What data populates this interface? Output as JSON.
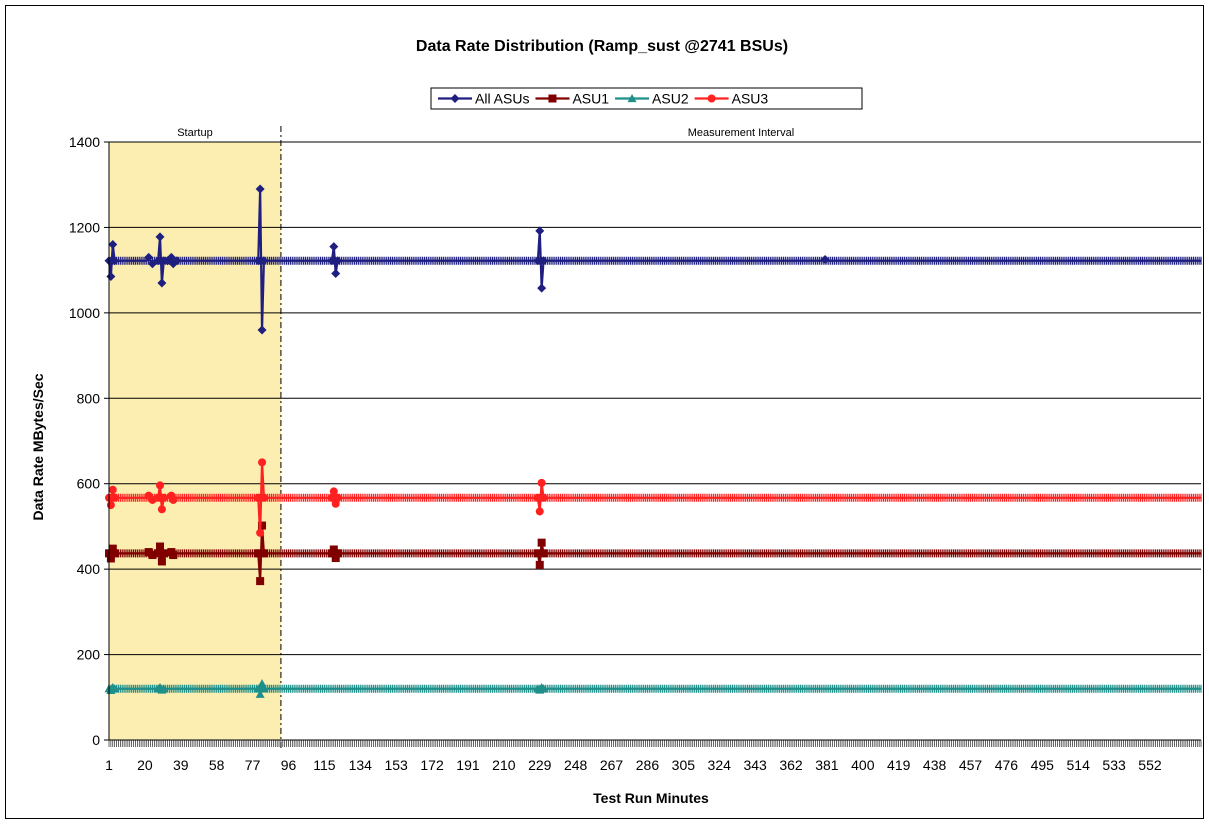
{
  "chart_data": {
    "type": "line",
    "title": "Data Rate Distribution (Ramp_sust @2741 BSUs)",
    "xlabel": "Test Run Minutes",
    "ylabel": "Data Rate MBytes/Sec",
    "ylim": [
      0,
      1400
    ],
    "yticks": [
      "0",
      "200",
      "400",
      "600",
      "800",
      "1000",
      "1200",
      "1400"
    ],
    "xlim": [
      1,
      579
    ],
    "xtick_labels": [
      "1",
      "20",
      "39",
      "58",
      "77",
      "96",
      "115",
      "134",
      "153",
      "172",
      "191",
      "210",
      "229",
      "248",
      "267",
      "286",
      "305",
      "324",
      "343",
      "362",
      "381",
      "400",
      "419",
      "438",
      "457",
      "476",
      "495",
      "514",
      "533",
      "552"
    ],
    "xtick_values": [
      1,
      20,
      39,
      58,
      77,
      96,
      115,
      134,
      153,
      172,
      191,
      210,
      229,
      248,
      267,
      286,
      305,
      324,
      343,
      362,
      381,
      400,
      419,
      438,
      457,
      476,
      495,
      514,
      533,
      552
    ],
    "grid": true,
    "legend_position": "top",
    "regions": [
      {
        "label": "Startup",
        "x_start": 1,
        "x_end": 92,
        "color": "#FCEDB0"
      },
      {
        "label": "Measurement Interval",
        "x_start": 92,
        "x_end": 579
      }
    ],
    "series": [
      {
        "name": "All ASUs",
        "color": "#1F1F80",
        "marker": "diamond",
        "baseline": 1122,
        "spikes": [
          [
            1,
            1122
          ],
          [
            2,
            1085
          ],
          [
            3,
            1160
          ],
          [
            4,
            1122
          ],
          [
            22,
            1130
          ],
          [
            24,
            1115
          ],
          [
            27,
            1122
          ],
          [
            28,
            1178
          ],
          [
            29,
            1070
          ],
          [
            30,
            1122
          ],
          [
            32,
            1122
          ],
          [
            34,
            1130
          ],
          [
            35,
            1115
          ],
          [
            37,
            1122
          ],
          [
            80,
            1122
          ],
          [
            81,
            1290
          ],
          [
            82,
            960
          ],
          [
            83,
            1122
          ],
          [
            119,
            1122
          ],
          [
            120,
            1155
          ],
          [
            121,
            1092
          ],
          [
            122,
            1122
          ],
          [
            228,
            1122
          ],
          [
            229,
            1192
          ],
          [
            230,
            1058
          ],
          [
            231,
            1122
          ],
          [
            380,
            1125
          ]
        ]
      },
      {
        "name": "ASU1",
        "color": "#800000",
        "marker": "square",
        "baseline": 437,
        "spikes": [
          [
            1,
            437
          ],
          [
            2,
            425
          ],
          [
            3,
            448
          ],
          [
            4,
            437
          ],
          [
            22,
            440
          ],
          [
            24,
            433
          ],
          [
            27,
            437
          ],
          [
            28,
            453
          ],
          [
            29,
            418
          ],
          [
            30,
            437
          ],
          [
            34,
            440
          ],
          [
            35,
            433
          ],
          [
            80,
            437
          ],
          [
            81,
            372
          ],
          [
            82,
            502
          ],
          [
            83,
            437
          ],
          [
            119,
            437
          ],
          [
            120,
            446
          ],
          [
            121,
            426
          ],
          [
            122,
            437
          ],
          [
            228,
            437
          ],
          [
            229,
            410
          ],
          [
            230,
            462
          ],
          [
            231,
            437
          ]
        ]
      },
      {
        "name": "ASU2",
        "color": "#1F8F8A",
        "marker": "triangle",
        "baseline": 120,
        "spikes": [
          [
            1,
            120
          ],
          [
            2,
            116
          ],
          [
            3,
            123
          ],
          [
            4,
            120
          ],
          [
            27,
            120
          ],
          [
            28,
            123
          ],
          [
            29,
            117
          ],
          [
            30,
            120
          ],
          [
            80,
            120
          ],
          [
            81,
            107
          ],
          [
            82,
            132
          ],
          [
            83,
            120
          ],
          [
            228,
            120
          ],
          [
            229,
            117
          ],
          [
            230,
            123
          ],
          [
            231,
            120
          ]
        ]
      },
      {
        "name": "ASU3",
        "color": "#FF2020",
        "marker": "circle",
        "baseline": 567,
        "spikes": [
          [
            1,
            567
          ],
          [
            2,
            550
          ],
          [
            3,
            586
          ],
          [
            4,
            567
          ],
          [
            22,
            572
          ],
          [
            24,
            562
          ],
          [
            27,
            567
          ],
          [
            28,
            596
          ],
          [
            29,
            540
          ],
          [
            30,
            567
          ],
          [
            34,
            572
          ],
          [
            35,
            562
          ],
          [
            80,
            567
          ],
          [
            81,
            485
          ],
          [
            82,
            650
          ],
          [
            83,
            567
          ],
          [
            119,
            567
          ],
          [
            120,
            582
          ],
          [
            121,
            553
          ],
          [
            122,
            567
          ],
          [
            228,
            567
          ],
          [
            229,
            535
          ],
          [
            230,
            602
          ],
          [
            231,
            567
          ]
        ]
      }
    ]
  }
}
